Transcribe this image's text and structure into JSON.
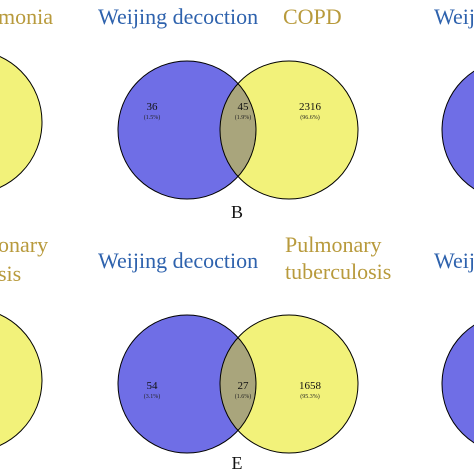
{
  "colors": {
    "blue_circle": "#6f6ee6",
    "yellow_circle": "#f2f27a",
    "overlap": "#a9a57c",
    "blue_text": "#2e62ad",
    "gold_text": "#b89a3c",
    "outline": "#000000"
  },
  "top_row": {
    "left_partial_label": "monia",
    "right_partial_label": "Weij",
    "venn_B": {
      "set_a_label": "Weijing decoction",
      "set_b_label": "COPD",
      "only_a": "36",
      "only_a_pct": "(1.5%)",
      "both": "45",
      "both_pct": "(1.9%)",
      "only_b": "2316",
      "only_b_pct": "(96.6%)",
      "panel_letter": "B"
    }
  },
  "bottom_row": {
    "left_partial_label_1": "onary",
    "left_partial_label_2": "sis",
    "right_partial_label": "Weij",
    "venn_E": {
      "set_a_label": "Weijing decoction",
      "set_b_label_line1": "Pulmonary",
      "set_b_label_line2": "tuberculosis",
      "only_a": "54",
      "only_a_pct": "(3.1%)",
      "both": "27",
      "both_pct": "(1.6%)",
      "only_b": "1658",
      "only_b_pct": "(95.3%)",
      "panel_letter": "E"
    }
  }
}
